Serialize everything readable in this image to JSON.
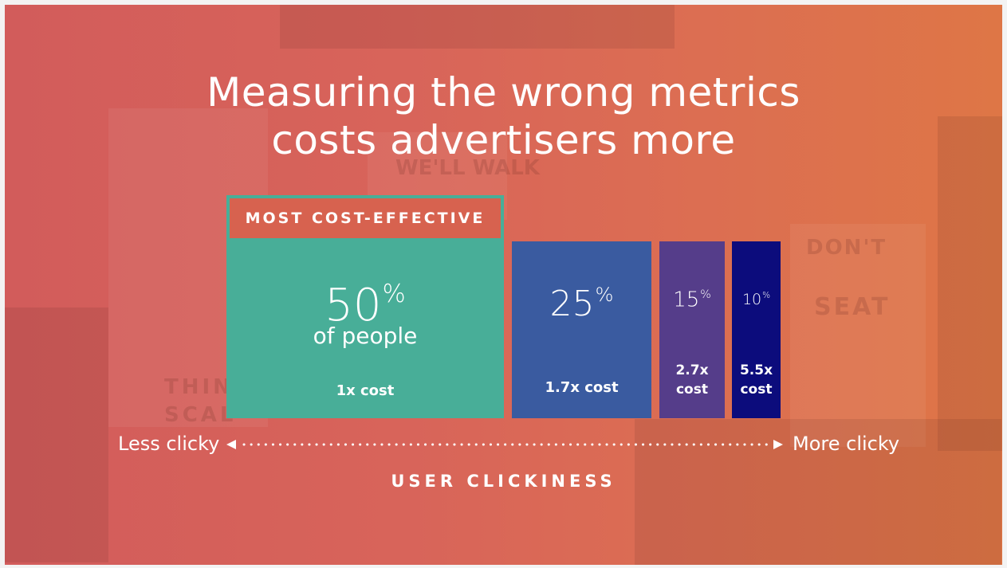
{
  "title_lines": [
    "Measuring the wrong metrics",
    "costs advertisers more"
  ],
  "highlight_label": "MOST COST-EFFECTIVE",
  "colors": {
    "background": "#d8645a",
    "block1": "#48ae98",
    "block2": "#3a5ba0",
    "block3": "#553d8a",
    "block4": "#0c0c7c",
    "text": "#ffffff"
  },
  "chart_data": {
    "type": "bar",
    "title": "Measuring the wrong metrics costs advertisers more",
    "xlabel": "USER CLICKINESS",
    "axis_ends": [
      "Less clicky",
      "More clicky"
    ],
    "unit": "%",
    "blocks": [
      {
        "percent": 50,
        "percent_label": "50",
        "sub_label": "of people",
        "cost_label": "1x cost",
        "cost_multiplier": 1
      },
      {
        "percent": 25,
        "percent_label": "25",
        "sub_label": "",
        "cost_label": "1.7x cost",
        "cost_multiplier": 1.7
      },
      {
        "percent": 15,
        "percent_label": "15",
        "sub_label": "",
        "cost_label": "2.7x cost",
        "cost_multiplier": 2.7
      },
      {
        "percent": 10,
        "percent_label": "10",
        "sub_label": "",
        "cost_label": "5.5x cost",
        "cost_multiplier": 5.5
      }
    ]
  }
}
